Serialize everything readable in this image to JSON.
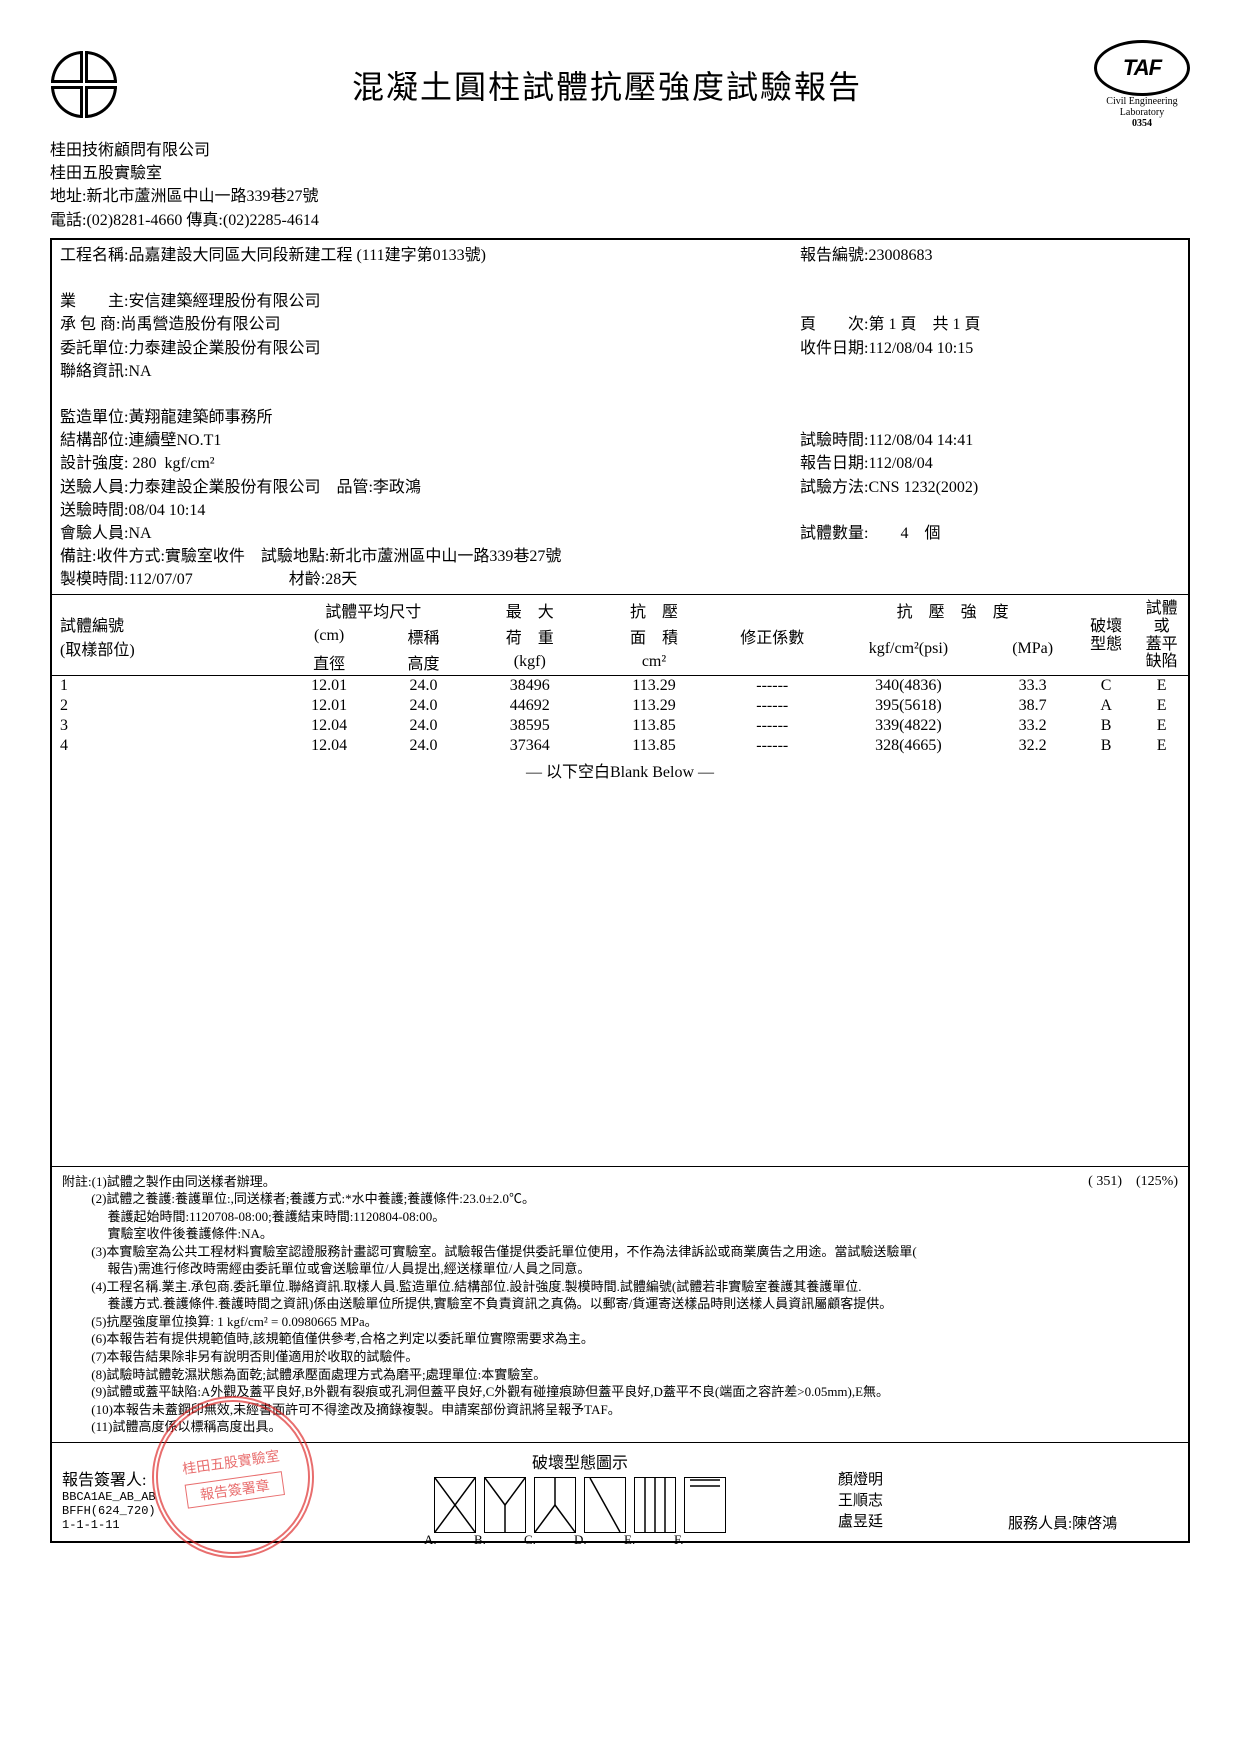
{
  "header": {
    "title": "混凝土圓柱試體抗壓強度試驗報告",
    "taf_label": "TAF",
    "taf_sub1": "Civil Engineering",
    "taf_sub2": "Laboratory",
    "taf_code": "0354"
  },
  "company": {
    "line1": "桂田技術顧問有限公司",
    "line2": "桂田五股實驗室",
    "line3": "地址:新北市蘆洲區中山一路339巷27號",
    "line4": "電話:(02)8281-4660 傳真:(02)2285-4614"
  },
  "meta": {
    "project_label": "工程名稱:",
    "project": "品嘉建設大同區大同段新建工程 (111建字第0133號)",
    "report_no_label": "報告編號:",
    "report_no": "23008683",
    "owner_label": "業　　主:",
    "owner": "安信建築經理股份有限公司",
    "contractor_label": "承 包 商:",
    "contractor": "尚禹營造股份有限公司",
    "client_label": "委託單位:",
    "client": "力泰建設企業股份有限公司",
    "contact_label": "聯絡資訊:",
    "contact": "NA",
    "page_label": "頁　　次:",
    "page": "第 1 頁　共 1 頁",
    "recv_date_label": "收件日期:",
    "recv_date": "112/08/04 10:15",
    "supervisor_label": "監造單位:",
    "supervisor": "黃翔龍建築師事務所",
    "struct_label": "結構部位:",
    "struct": "連續壁NO.T1",
    "design_label": "設計強度:",
    "design": " 280  kgf/cm²",
    "sender_label": "送驗人員:",
    "sender": "力泰建設企業股份有限公司　品管:李政鴻",
    "sendtime_label": "送驗時間:",
    "sendtime": "08/04 10:14",
    "witness_label": "會驗人員:",
    "witness": "NA",
    "remark_label": "備註:",
    "remark": "收件方式:實驗室收件　試驗地點:新北市蘆洲區中山一路339巷27號",
    "mold_label": "製模時間:",
    "mold": "112/07/07",
    "age_label": "材齡:",
    "age": "28天",
    "test_time_label": "試驗時間:",
    "test_time": "112/08/04 14:41",
    "report_date_label": "報告日期:",
    "report_date": "112/08/04",
    "method_label": "試驗方法:",
    "method": "CNS 1232(2002)",
    "qty_label": "試體數量:",
    "qty": "　　4　個"
  },
  "table": {
    "h_id1": "試體編號",
    "h_id2": "(取樣部位)",
    "h_dim1": "試體平均尺寸",
    "h_dim2": "(cm)",
    "h_dia": "直徑",
    "h_nom": "標稱",
    "h_height": "高度",
    "h_load1": "最　大",
    "h_load2": "荷　重",
    "h_load3": "(kgf)",
    "h_area1": "抗　壓",
    "h_area2": "面　積",
    "h_area3": "cm²",
    "h_corr": "修正係數",
    "h_str1": "抗　壓　強　度",
    "h_str2": "kgf/cm²(psi)",
    "h_str3": "(MPa)",
    "h_fail1": "破壞",
    "h_fail2": "型態",
    "h_def1": "試體",
    "h_def2": "或",
    "h_def3": "蓋平",
    "h_def4": "缺陷",
    "rows": [
      {
        "id": "1",
        "dia": "12.01",
        "h": "24.0",
        "load": "38496",
        "area": "113.29",
        "corr": "------",
        "kgf": "340(4836)",
        "mpa": "33.3",
        "fail": "C",
        "def": "E"
      },
      {
        "id": "2",
        "dia": "12.01",
        "h": "24.0",
        "load": "44692",
        "area": "113.29",
        "corr": "------",
        "kgf": "395(5618)",
        "mpa": "38.7",
        "fail": "A",
        "def": "E"
      },
      {
        "id": "3",
        "dia": "12.04",
        "h": "24.0",
        "load": "38595",
        "area": "113.85",
        "corr": "------",
        "kgf": "339(4822)",
        "mpa": "33.2",
        "fail": "B",
        "def": "E"
      },
      {
        "id": "4",
        "dia": "12.04",
        "h": "24.0",
        "load": "37364",
        "area": "113.85",
        "corr": "------",
        "kgf": "328(4665)",
        "mpa": "32.2",
        "fail": "B",
        "def": "E"
      }
    ],
    "blank_below": "—  以下空白Blank Below  —"
  },
  "notes": {
    "prefix": "附註:",
    "pct1": "( 351)",
    "pct2": "(125%)",
    "n1": "(1)試體之製作由同送樣者辦理。",
    "n2": "(2)試體之養護:養護單位:,同送樣者;養護方式:*水中養護;養護條件:23.0±2.0℃。",
    "n2b": "　 養護起始時間:1120708-08:00;養護結束時間:1120804-08:00。",
    "n2c": "　 實驗室收件後養護條件:NA。",
    "n3": "(3)本實驗室為公共工程材料實驗室認證服務計畫認可實驗室。試驗報告僅提供委託單位使用，不作為法律訴訟或商業廣告之用途。當試驗送驗單(",
    "n3b": "　 報告)需進行修改時需經由委託單位或會送驗單位/人員提出,經送樣單位/人員之同意。",
    "n4": "(4)工程名稱.業主.承包商.委託單位.聯絡資訊.取樣人員.監造單位.結構部位.設計強度.製模時間.試體編號(試體若非實驗室養護其養護單位.",
    "n4b": "　 養護方式.養護條件.養護時間之資訊)係由送驗單位所提供,實驗室不負責資訊之真偽。以郵寄/貨運寄送樣品時則送樣人員資訊屬顧客提供。",
    "n5": "(5)抗壓強度單位換算: 1 kgf/cm² = 0.0980665 MPa。",
    "n6": "(6)本報告若有提供規範值時,該規範值僅供參考,合格之判定以委託單位實際需要求為主。",
    "n7": "(7)本報告結果除非另有說明否則僅適用於收取的試驗件。",
    "n8": "(8)試驗時試體乾濕狀態為面乾;試體承壓面處理方式為磨平;處理單位:本實驗室。",
    "n9": "(9)試體或蓋平缺陷:A外觀及蓋平良好,B外觀有裂痕或孔洞但蓋平良好,C外觀有碰撞痕跡但蓋平良好,D蓋平不良(端面之容許差>0.05mm),E無。",
    "n10": "(10)本報告未蓋鋼印無效,未經書面許可不得塗改及摘錄複製。申請案部份資訊將呈報予TAF。",
    "n11": "(11)試體高度係以標稱高度出具。"
  },
  "footer": {
    "sign_label": "報告簽署人:",
    "code1": "BBCA1AE_AB_AB",
    "code2": "BFFH(624_720)",
    "code3": "1-1-1-11",
    "stamp_text": "桂田五股實驗室",
    "stamp_inner": "報告簽署章",
    "fracture_title": "破壞型態圖示",
    "frac_labels": [
      "A.",
      "B.",
      "C.",
      "D.",
      "E.",
      "F."
    ],
    "names": [
      "顏燈明",
      "王順志",
      "盧昱廷"
    ],
    "service_label": "服務人員:",
    "service_name": "陳啓鴻"
  }
}
